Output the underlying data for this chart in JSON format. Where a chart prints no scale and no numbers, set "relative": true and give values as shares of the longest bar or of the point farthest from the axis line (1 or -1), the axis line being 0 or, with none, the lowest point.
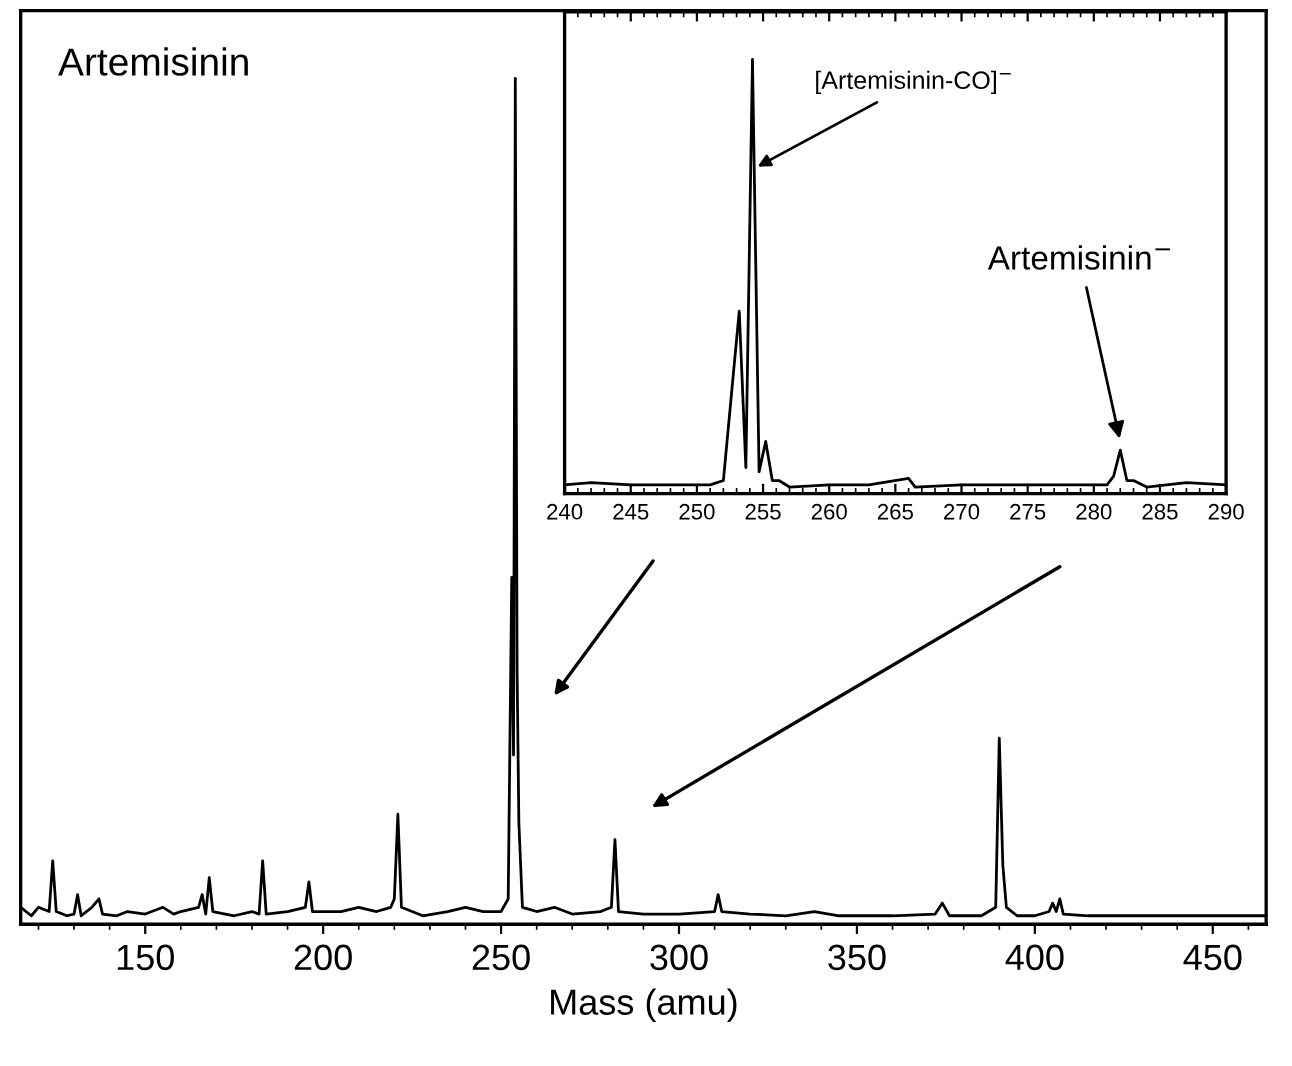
{
  "chart_data": [
    {
      "type": "line",
      "relative": true,
      "xlabel": "Mass (amu)",
      "xlim": [
        115,
        465
      ],
      "xticks": [
        150,
        200,
        250,
        300,
        350,
        400,
        450
      ],
      "tick_labels": "x",
      "color": "#000000",
      "annotations": [
        "Artemisinin"
      ],
      "x": [
        115,
        118,
        120,
        123,
        124,
        125,
        128,
        130,
        131,
        132,
        135,
        137,
        138,
        142,
        145,
        150,
        155,
        158,
        160,
        165,
        166,
        167,
        168,
        169,
        175,
        180,
        182,
        183,
        184,
        190,
        195,
        196,
        197,
        205,
        210,
        215,
        219,
        220,
        221,
        222,
        228,
        235,
        240,
        245,
        250,
        252,
        253,
        253.5,
        254,
        254.5,
        255,
        256,
        260,
        265,
        270,
        278,
        281,
        282,
        283,
        290,
        300,
        310,
        311,
        312,
        320,
        330,
        338,
        345,
        360,
        372,
        374,
        376,
        385,
        389,
        390,
        391,
        392,
        395,
        400,
        404,
        405,
        406,
        407,
        408,
        415,
        430,
        450,
        465
      ],
      "values": [
        0.02,
        0.01,
        0.02,
        0.015,
        0.075,
        0.015,
        0.01,
        0.012,
        0.035,
        0.01,
        0.02,
        0.03,
        0.012,
        0.01,
        0.015,
        0.012,
        0.02,
        0.012,
        0.015,
        0.02,
        0.035,
        0.012,
        0.055,
        0.015,
        0.01,
        0.015,
        0.012,
        0.075,
        0.012,
        0.015,
        0.02,
        0.05,
        0.015,
        0.015,
        0.02,
        0.015,
        0.02,
        0.03,
        0.13,
        0.02,
        0.01,
        0.015,
        0.02,
        0.015,
        0.015,
        0.03,
        0.41,
        0.2,
        1.0,
        0.3,
        0.12,
        0.02,
        0.015,
        0.02,
        0.012,
        0.015,
        0.02,
        0.1,
        0.015,
        0.012,
        0.012,
        0.015,
        0.035,
        0.015,
        0.012,
        0.01,
        0.015,
        0.01,
        0.01,
        0.012,
        0.025,
        0.01,
        0.01,
        0.02,
        0.22,
        0.07,
        0.02,
        0.01,
        0.01,
        0.015,
        0.025,
        0.015,
        0.03,
        0.012,
        0.01,
        0.01,
        0.01,
        0.01
      ]
    },
    {
      "type": "line",
      "relative": true,
      "xlim": [
        240,
        290
      ],
      "xticks": [
        240,
        245,
        250,
        255,
        260,
        265,
        270,
        275,
        280,
        285,
        290
      ],
      "tick_labels": "x",
      "color": "#000000",
      "annotations": [
        {
          "text": "[Artemisinin-CO]$^{−}$",
          "x": 254.4,
          "y": 0.75
        },
        {
          "text": "Artemisinin$^{−}$",
          "x": 282,
          "y": 0.12
        }
      ],
      "x": [
        240,
        242,
        245,
        248,
        251,
        252,
        253.2,
        253.7,
        254.2,
        254.7,
        255.2,
        255.7,
        256.2,
        257,
        260,
        263,
        266,
        266.5,
        270,
        275,
        280,
        281,
        281.5,
        282,
        282.5,
        283,
        284,
        287,
        290
      ],
      "values": [
        0.02,
        0.025,
        0.02,
        0.02,
        0.02,
        0.03,
        0.42,
        0.06,
        1.0,
        0.05,
        0.12,
        0.03,
        0.03,
        0.015,
        0.02,
        0.02,
        0.035,
        0.015,
        0.02,
        0.02,
        0.02,
        0.02,
        0.04,
        0.1,
        0.03,
        0.03,
        0.015,
        0.025,
        0.02
      ]
    }
  ]
}
